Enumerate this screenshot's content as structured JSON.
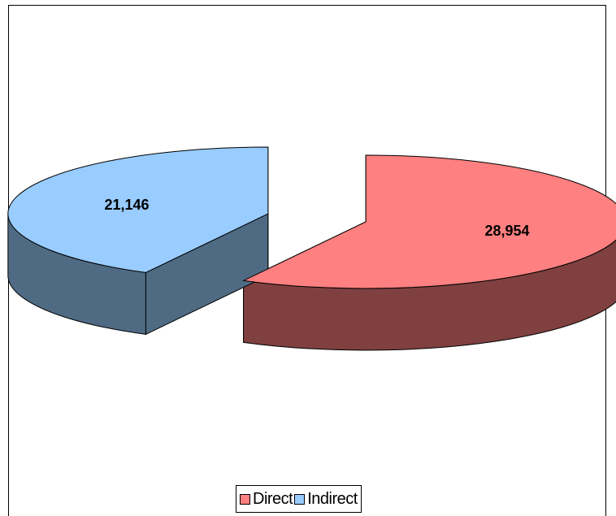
{
  "chart_data": {
    "type": "pie",
    "categories": [
      "Direct",
      "Indirect"
    ],
    "values": [
      28954,
      21146
    ],
    "data_labels": [
      "28,954",
      "21,146"
    ],
    "colors": {
      "Direct": "#ff8080",
      "Direct_side": "#804040",
      "Indirect": "#99ccff",
      "Indirect_side": "#4f6b84"
    },
    "title": "",
    "legend": "bottom",
    "style": "3d-exploded"
  },
  "legend": {
    "items": [
      {
        "label": "Direct",
        "color": "#ff8080"
      },
      {
        "label": "Indirect",
        "color": "#99ccff"
      }
    ]
  }
}
